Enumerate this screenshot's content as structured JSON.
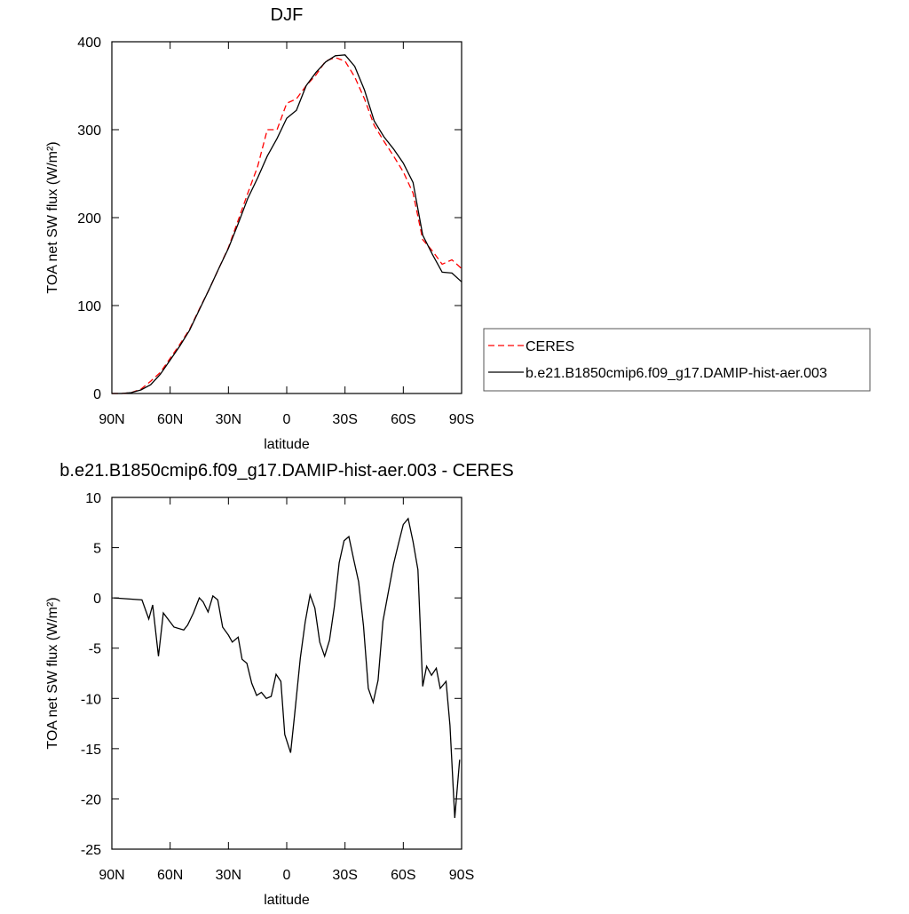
{
  "chart_data": [
    {
      "type": "line",
      "title": "DJF",
      "xlabel": "latitude",
      "ylabel": "TOA net SW flux (W/m²)",
      "x": [
        90,
        85,
        80,
        75,
        70,
        65,
        60,
        55,
        50,
        45,
        40,
        35,
        30,
        25,
        20,
        15,
        10,
        5,
        0,
        -5,
        -10,
        -15,
        -20,
        -25,
        -30,
        -35,
        -40,
        -45,
        -50,
        -55,
        -60,
        -65,
        -70,
        -75,
        -80,
        -85,
        -90
      ],
      "series": [
        {
          "name": "CERES",
          "color": "#ff0000",
          "linestyle": "dashed",
          "values": [
            0,
            0,
            1,
            5,
            14,
            24,
            40,
            56,
            73,
            96,
            118,
            142,
            166,
            197,
            228,
            258,
            300,
            300,
            330,
            335,
            350,
            362,
            378,
            382,
            378,
            360,
            335,
            305,
            287,
            270,
            252,
            228,
            175,
            162,
            147,
            152,
            142
          ]
        },
        {
          "name": "b.e21.B1850cmip6.f09_g17.DAMIP-hist-aer.003",
          "color": "#000000",
          "linestyle": "solid",
          "values": [
            0,
            0,
            1,
            4,
            10,
            22,
            38,
            54,
            72,
            95,
            118,
            142,
            165,
            193,
            222,
            245,
            270,
            290,
            313,
            322,
            350,
            365,
            377,
            384,
            385,
            372,
            345,
            310,
            292,
            278,
            262,
            240,
            180,
            158,
            138,
            137,
            127
          ]
        }
      ],
      "xlim": [
        90,
        -90
      ],
      "xticks": [
        {
          "value": 90,
          "label": "90N"
        },
        {
          "value": 60,
          "label": "60N"
        },
        {
          "value": 30,
          "label": "30N"
        },
        0,
        {
          "value": -30,
          "label": "30S"
        },
        {
          "value": -60,
          "label": "60S"
        },
        {
          "value": -90,
          "label": "90S"
        }
      ],
      "ylim": [
        0,
        400
      ],
      "yticks": [
        0,
        100,
        200,
        300,
        400
      ],
      "legend": "right"
    },
    {
      "type": "line",
      "title": "b.e21.B1850cmip6.f09_g17.DAMIP-hist-aer.003 - CERES",
      "xlabel": "latitude",
      "ylabel": "TOA net SW flux (W/m²)",
      "x": [
        89,
        74.5,
        71,
        69,
        66,
        63.5,
        58,
        53,
        51,
        48,
        45,
        43,
        40.5,
        38,
        35.5,
        33,
        30,
        28,
        25,
        23,
        20.5,
        18,
        15.5,
        13,
        10.5,
        8,
        5.5,
        3,
        1,
        -2,
        -4,
        -7,
        -9.5,
        -12,
        -14.5,
        -17,
        -19.5,
        -22,
        -24.5,
        -27,
        -29.5,
        -32,
        -34.5,
        -37,
        -39.5,
        -42,
        -44.5,
        -47,
        -49.5,
        -55,
        -57.5,
        -60,
        -62.5,
        -65,
        -67.5,
        -70,
        -72,
        -74.5,
        -77,
        -79,
        -82,
        -84,
        -86.5,
        -89
      ],
      "values": [
        0,
        -0.2,
        -2.1,
        -0.7,
        -5.8,
        -1.5,
        -2.9,
        -3.2,
        -2.7,
        -1.5,
        0,
        -0.4,
        -1.4,
        0.2,
        -0.2,
        -2.9,
        -3.7,
        -4.4,
        -3.9,
        -6.1,
        -6.5,
        -8.5,
        -9.7,
        -9.4,
        -10,
        -9.8,
        -7.6,
        -8.3,
        -13.6,
        -15.4,
        -11.7,
        -6,
        -2.4,
        0.3,
        -1,
        -4.4,
        -5.8,
        -4.2,
        -0.9,
        3.5,
        5.7,
        6.1,
        3.8,
        1.6,
        -2.8,
        -9,
        -10.4,
        -8.2,
        -2.3,
        3.4,
        5.4,
        7.3,
        7.9,
        5.6,
        2.8,
        -8.8,
        -6.8,
        -7.7,
        -7,
        -9,
        -8.3,
        -12.7,
        -21.9,
        -16.1
      ],
      "color": "#000000",
      "linestyle": "solid",
      "xlim": [
        90,
        -90
      ],
      "xticks": [
        {
          "value": 90,
          "label": "90N"
        },
        {
          "value": 60,
          "label": "60N"
        },
        {
          "value": 30,
          "label": "30N"
        },
        0,
        {
          "value": -30,
          "label": "30S"
        },
        {
          "value": -60,
          "label": "60S"
        },
        {
          "value": -90,
          "label": "90S"
        }
      ],
      "ylim": [
        -25,
        10
      ],
      "yticks": [
        -25,
        -20,
        -15,
        -10,
        -5,
        0,
        5,
        10
      ]
    }
  ]
}
